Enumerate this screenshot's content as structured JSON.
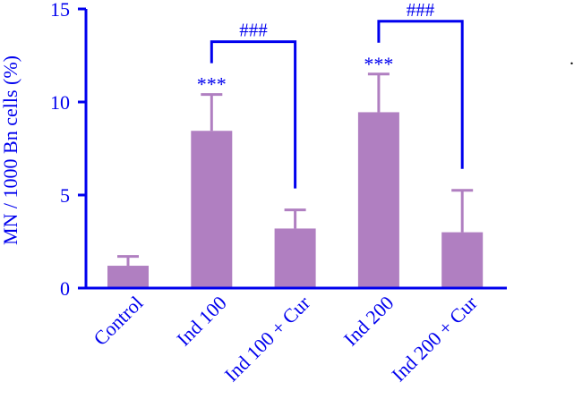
{
  "chart_data": {
    "type": "bar",
    "title": "",
    "xlabel": "",
    "ylabel": "MN / 1000 Bn cells (%)",
    "ylim": [
      0,
      15
    ],
    "yticks": [
      0,
      5,
      10,
      15
    ],
    "categories": [
      "Control",
      "Ind 100",
      "Ind 100 + Cur",
      "Ind 200",
      "Ind 200 + Cur"
    ],
    "values": [
      1.2,
      8.45,
      3.2,
      9.45,
      3.0
    ],
    "errors": [
      0.5,
      1.95,
      1.0,
      2.05,
      2.25
    ],
    "annotations": [
      {
        "category": "Ind 100",
        "text": "***"
      },
      {
        "category": "Ind 200",
        "text": "***"
      }
    ],
    "brackets": [
      {
        "from": "Ind 100",
        "to": "Ind 100 + Cur",
        "text": "###"
      },
      {
        "from": "Ind 200",
        "to": "Ind 200 + Cur",
        "text": "###"
      }
    ],
    "colors": {
      "bar": "#b07fc1",
      "axis": "#0000ee",
      "text": "#0000ee"
    }
  },
  "marker": "."
}
